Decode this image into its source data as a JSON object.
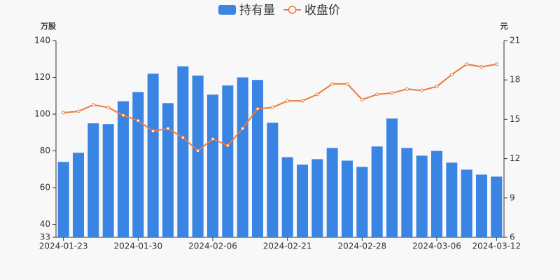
{
  "chart_data": {
    "type": "combo",
    "legend": "top",
    "y_axis_label": "万股",
    "y2_axis_label": "元",
    "categories": [
      "2024-01-23",
      null,
      null,
      null,
      null,
      "2024-01-30",
      null,
      null,
      null,
      null,
      "2024-02-06",
      null,
      null,
      null,
      null,
      "2024-02-21",
      null,
      null,
      null,
      null,
      "2024-02-28",
      null,
      null,
      null,
      null,
      "2024-03-06",
      null,
      null,
      null,
      "2024-03-12"
    ],
    "series": [
      {
        "name": "持有量",
        "type": "bar",
        "color": "#3a84e3",
        "values": [
          74,
          79,
          95,
          94.6,
          107,
          112,
          122,
          106,
          126,
          121,
          110.6,
          115.6,
          120,
          118.6,
          95.3,
          76.6,
          72.5,
          75.5,
          81.6,
          74.7,
          71.3,
          82.4,
          97.6,
          81.6,
          77.4,
          80,
          73.6,
          69.8,
          67.1,
          66
        ]
      },
      {
        "name": "收盘价",
        "type": "line",
        "axis": "y2",
        "color": "#ec7a3a",
        "values": [
          15.5,
          15.6,
          16.1,
          15.9,
          15.3,
          14.9,
          14.1,
          14.3,
          13.6,
          12.6,
          13.5,
          13.0,
          14.3,
          15.8,
          15.9,
          16.4,
          16.4,
          16.9,
          17.7,
          17.7,
          16.5,
          16.9,
          17.0,
          17.3,
          17.2,
          17.5,
          18.4,
          19.2,
          19.0,
          19.2
        ]
      }
    ],
    "ylim": [
      33,
      140
    ],
    "yticks": [
      33,
      40,
      60,
      80,
      100,
      120,
      140
    ],
    "y2lim": [
      6,
      21
    ],
    "y2ticks": [
      6,
      9,
      12,
      15,
      18,
      21
    ]
  }
}
